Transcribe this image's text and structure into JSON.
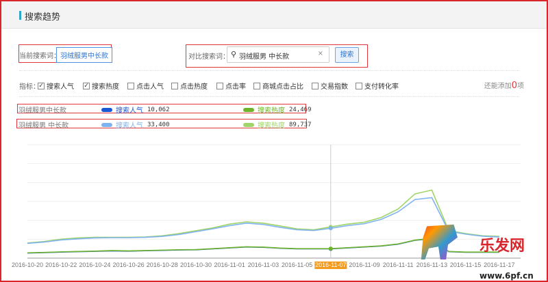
{
  "header": {
    "title": "搜索趋势"
  },
  "current": {
    "label": "当前搜索词：",
    "value": "羽绒服男中长款"
  },
  "compare": {
    "label": "对比搜索词：",
    "value": "羽绒服男 中长款",
    "clear": "×",
    "button": "搜索"
  },
  "metrics": {
    "label": "指标：",
    "items": [
      {
        "label": "搜索人气",
        "checked": true
      },
      {
        "label": "搜索热度",
        "checked": true
      },
      {
        "label": "点击人气",
        "checked": false
      },
      {
        "label": "点击热度",
        "checked": false
      },
      {
        "label": "点击率",
        "checked": false
      },
      {
        "label": "商城点击占比",
        "checked": false
      },
      {
        "label": "交易指数",
        "checked": false
      },
      {
        "label": "支付转化率",
        "checked": false
      }
    ],
    "remain_prefix": "还能添加",
    "remain_count": "0",
    "remain_suffix": "项"
  },
  "legend": [
    {
      "term": "羽绒服男中长款",
      "s1": "搜索人气",
      "v1": "10,062",
      "s2": "搜索热度",
      "v2": "24,469",
      "c1": "#1a57d6",
      "c2": "#6db42a"
    },
    {
      "term": "羽绒服男 中长款",
      "s1": "搜索人气",
      "v1": "33,400",
      "s2": "搜索热度",
      "v2": "89,737",
      "c1": "#7fb3ef",
      "c2": "#9fd468"
    }
  ],
  "chart_data": {
    "type": "line",
    "ylim": [
      0,
      6
    ],
    "grid": true,
    "highlight_x": "2016-11-07",
    "x_tick_labels": [
      "2016-10-20",
      "2016-10-22",
      "2016-10-24",
      "2016-10-26",
      "2016-10-28",
      "2016-10-30",
      "2016-11-01",
      "2016-11-03",
      "2016-11-05",
      "2016-11-07",
      "2016-11-09",
      "2016-11-11",
      "2016-11-13",
      "2016-11-15",
      "2016-11-17"
    ],
    "x_start": "2016-10-20",
    "x_end": "2016-11-17",
    "series": [
      {
        "color": "#9fd468",
        "values": [
          0.8,
          0.88,
          1.0,
          1.07,
          1.1,
          1.1,
          1.1,
          1.12,
          1.18,
          1.3,
          1.45,
          1.6,
          1.8,
          1.92,
          1.85,
          1.7,
          1.55,
          1.5,
          1.65,
          1.8,
          1.9,
          2.15,
          2.6,
          3.4,
          3.6,
          1.46,
          1.3,
          1.18,
          1.15
        ]
      },
      {
        "color": "#7fb3ef",
        "values": [
          0.78,
          0.85,
          0.96,
          1.02,
          1.07,
          1.08,
          1.08,
          1.1,
          1.15,
          1.25,
          1.4,
          1.55,
          1.72,
          1.85,
          1.78,
          1.63,
          1.5,
          1.46,
          1.58,
          1.72,
          1.82,
          2.05,
          2.45,
          3.1,
          3.2,
          1.42,
          1.27,
          1.16,
          1.12
        ]
      },
      {
        "color": "#1a57d6",
        "values": [
          0.27,
          0.29,
          0.32,
          0.34,
          0.36,
          0.38,
          0.37,
          0.39,
          0.41,
          0.43,
          0.44,
          0.49,
          0.54,
          0.59,
          0.57,
          0.52,
          0.49,
          0.49,
          0.49,
          0.54,
          0.59,
          0.64,
          0.74,
          0.94,
          1.03,
          0.34,
          0.31,
          0.31,
          0.31
        ]
      },
      {
        "color": "#6db42a",
        "values": [
          0.28,
          0.3,
          0.33,
          0.35,
          0.37,
          0.4,
          0.38,
          0.4,
          0.42,
          0.44,
          0.45,
          0.5,
          0.55,
          0.6,
          0.58,
          0.53,
          0.5,
          0.5,
          0.5,
          0.55,
          0.6,
          0.65,
          0.75,
          0.95,
          1.05,
          0.35,
          0.32,
          0.32,
          0.32
        ]
      }
    ]
  },
  "watermark": {
    "text": "乐发网",
    "url_text": "www.6pf.cn"
  }
}
